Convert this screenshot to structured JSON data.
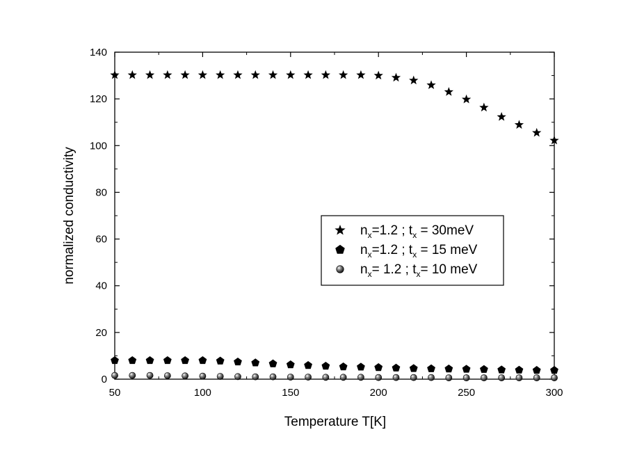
{
  "chart_data": {
    "type": "scatter",
    "title": "",
    "xlabel": "Temperature T[K]",
    "ylabel": "normalized conductivity",
    "xlim": [
      50,
      300
    ],
    "ylim": [
      0,
      140
    ],
    "xticks": [
      "50",
      "100",
      "150",
      "200",
      "250",
      "300"
    ],
    "yticks": [
      "0",
      "20",
      "40",
      "60",
      "80",
      "100",
      "120",
      "140"
    ],
    "grid": false,
    "legend_position": "center-right",
    "x": [
      50,
      60,
      70,
      80,
      90,
      100,
      110,
      120,
      130,
      140,
      150,
      160,
      170,
      180,
      190,
      200,
      210,
      220,
      230,
      240,
      250,
      260,
      270,
      280,
      290,
      300
    ],
    "series": [
      {
        "marker": "star",
        "color": "#000000",
        "legend": [
          {
            "text": "n",
            "sub": false
          },
          {
            "text": "x",
            "sub": true
          },
          {
            "text": "=1.2 ; t",
            "sub": false
          },
          {
            "text": "x",
            "sub": true
          },
          {
            "text": " = 30meV",
            "sub": false
          }
        ],
        "values": [
          130.2,
          130.2,
          130.2,
          130.2,
          130.2,
          130.2,
          130.2,
          130.2,
          130.2,
          130.2,
          130.2,
          130.2,
          130.2,
          130.2,
          130.2,
          130.0,
          129.1,
          127.9,
          125.9,
          123.0,
          119.8,
          116.3,
          112.3,
          108.9,
          105.5,
          102.2
        ]
      },
      {
        "marker": "pentagon",
        "color": "#000000",
        "legend": [
          {
            "text": "n",
            "sub": false
          },
          {
            "text": "x",
            "sub": true
          },
          {
            "text": "=1.2 ; t",
            "sub": false
          },
          {
            "text": "x",
            "sub": true
          },
          {
            "text": " = 15 meV",
            "sub": false
          }
        ],
        "values": [
          8.0,
          8.0,
          8.0,
          8.0,
          8.0,
          8.0,
          7.8,
          7.4,
          7.0,
          6.6,
          6.2,
          5.9,
          5.6,
          5.3,
          5.2,
          5.0,
          4.8,
          4.6,
          4.5,
          4.4,
          4.3,
          4.2,
          4.0,
          3.9,
          3.8,
          3.8
        ]
      },
      {
        "marker": "sphere",
        "color": "#000000",
        "legend": [
          {
            "text": "n",
            "sub": false
          },
          {
            "text": "x",
            "sub": true
          },
          {
            "text": "= 1.2 ; t",
            "sub": false
          },
          {
            "text": "x",
            "sub": true
          },
          {
            "text": "= 10 meV",
            "sub": false
          }
        ],
        "values": [
          1.6,
          1.6,
          1.6,
          1.5,
          1.4,
          1.3,
          1.2,
          1.1,
          1.0,
          1.0,
          0.9,
          0.9,
          0.8,
          0.8,
          0.8,
          0.7,
          0.7,
          0.7,
          0.7,
          0.6,
          0.6,
          0.6,
          0.6,
          0.6,
          0.6,
          0.6
        ]
      }
    ]
  }
}
